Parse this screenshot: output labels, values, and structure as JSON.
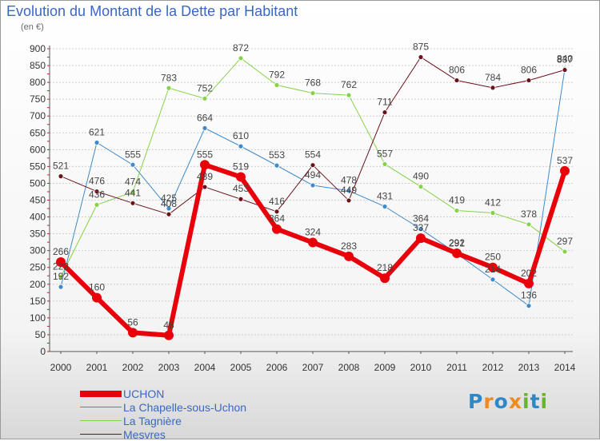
{
  "title": "Evolution du Montant de la Dette par Habitant",
  "unit_label": "(en €)",
  "brand": {
    "text": "Proxiti",
    "letters": [
      {
        "ch": "P",
        "color": "#2e88c8"
      },
      {
        "ch": "r",
        "color": "#f08a1c"
      },
      {
        "ch": "o",
        "color": "#2e88c8"
      },
      {
        "ch": "x",
        "color": "#f08a1c"
      },
      {
        "ch": "i",
        "color": "#6ab42d"
      },
      {
        "ch": "t",
        "color": "#2e88c8"
      },
      {
        "ch": "i",
        "color": "#6ab42d"
      }
    ]
  },
  "chart_data": {
    "type": "line",
    "x": [
      "2000",
      "2001",
      "2002",
      "2003",
      "2004",
      "2005",
      "2006",
      "2007",
      "2008",
      "2009",
      "2010",
      "2011",
      "2012",
      "2013",
      "2014"
    ],
    "ylim": [
      0,
      900
    ],
    "yticks": [
      0,
      50,
      100,
      150,
      200,
      250,
      300,
      350,
      400,
      450,
      500,
      550,
      600,
      650,
      700,
      750,
      800,
      850,
      900
    ],
    "grid": "horizontal",
    "legend_position": "bottom-left",
    "series": [
      {
        "name": "UCHON",
        "color": "#e8000b",
        "width": 6,
        "marker": 6,
        "values": [
          266,
          160,
          56,
          48,
          555,
          519,
          364,
          324,
          283,
          218,
          337,
          292,
          250,
          202,
          537
        ]
      },
      {
        "name": "La Chapelle-sous-Uchon",
        "color": "#3f8ac8",
        "width": 1,
        "marker": 3,
        "values": [
          192,
          621,
          555,
          425,
          664,
          610,
          553,
          494,
          478,
          431,
          364,
          291,
          214,
          136,
          840
        ]
      },
      {
        "name": "La Tagnière",
        "color": "#86d24a",
        "width": 1,
        "marker": 3,
        "values": [
          222,
          436,
          474,
          783,
          752,
          872,
          792,
          768,
          762,
          557,
          490,
          419,
          412,
          378,
          297
        ]
      },
      {
        "name": "Mesvres",
        "color": "#6b1219",
        "width": 1,
        "marker": 3,
        "values": [
          521,
          476,
          441,
          408,
          489,
          453,
          416,
          554,
          449,
          711,
          875,
          806,
          784,
          806,
          837
        ]
      }
    ]
  }
}
